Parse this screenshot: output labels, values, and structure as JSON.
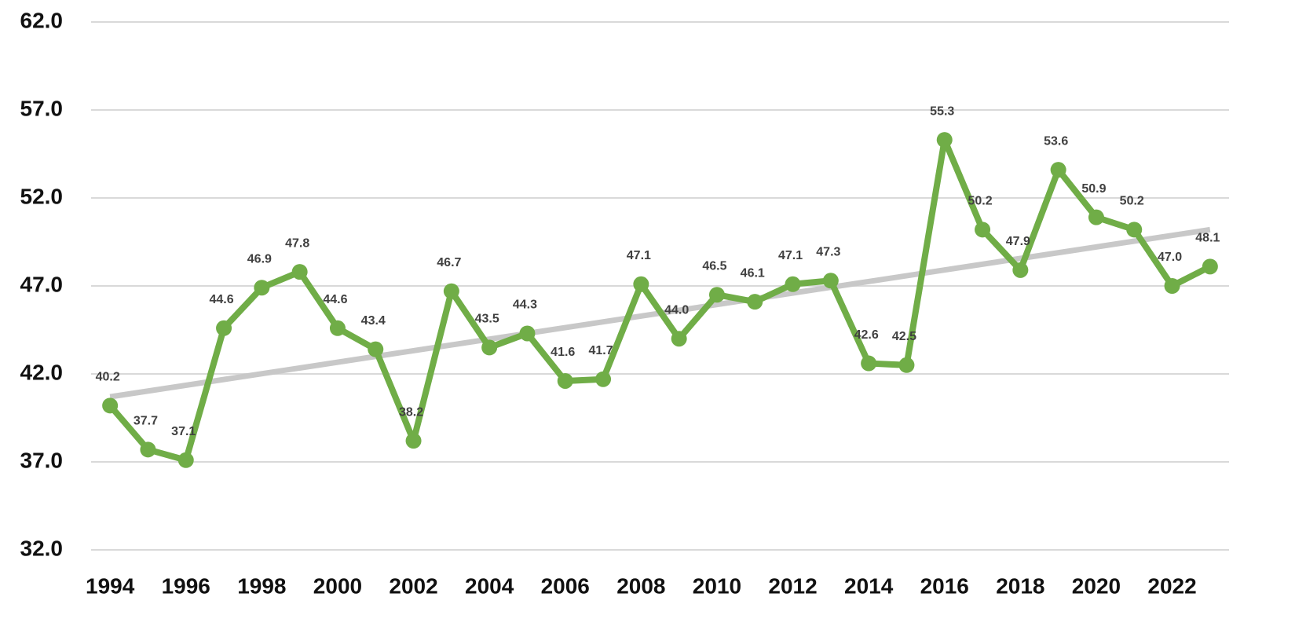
{
  "chart_data": {
    "type": "line",
    "x": [
      1994,
      1995,
      1996,
      1997,
      1998,
      1999,
      2000,
      2001,
      2002,
      2003,
      2004,
      2005,
      2006,
      2007,
      2008,
      2009,
      2010,
      2011,
      2012,
      2013,
      2014,
      2015,
      2016,
      2017,
      2018,
      2019,
      2020,
      2021,
      2022,
      2023
    ],
    "series": [
      {
        "color": "#70ad47",
        "values": [
          40.2,
          37.7,
          37.1,
          44.6,
          46.9,
          47.8,
          44.6,
          43.4,
          38.2,
          46.7,
          43.5,
          44.3,
          41.6,
          41.7,
          47.1,
          44.0,
          46.5,
          46.1,
          47.1,
          47.3,
          42.6,
          42.5,
          55.3,
          50.2,
          47.9,
          53.6,
          50.9,
          50.2,
          47.0,
          48.1
        ],
        "value_labels": [
          "40.2",
          "37.7",
          "37.1",
          "44.6",
          "46.9",
          "47.8",
          "44.6",
          "43.4",
          "38.2",
          "46.7",
          "43.5",
          "44.3",
          "41.6",
          "41.7",
          "47.1",
          "44.0",
          "46.5",
          "46.1",
          "47.1",
          "47.3",
          "42.6",
          "42.5",
          "55.3",
          "50.2",
          "47.9",
          "53.6",
          "50.9",
          "50.2",
          "47.0",
          "48.1"
        ]
      }
    ],
    "trendline": {
      "x": [
        1994,
        2023
      ],
      "values": [
        40.7,
        50.2
      ],
      "color": "#c8c8c8"
    },
    "xlim": [
      1993.5,
      2023.5
    ],
    "xticks": [
      1994,
      1996,
      1998,
      2000,
      2002,
      2004,
      2006,
      2008,
      2010,
      2012,
      2014,
      2016,
      2018,
      2020,
      2022
    ],
    "ylim": [
      32,
      62
    ],
    "yticks": [
      {
        "value": 32,
        "label": "32.0"
      },
      {
        "value": 37,
        "label": "37.0"
      },
      {
        "value": 42,
        "label": "42.0"
      },
      {
        "value": 47,
        "label": "47.0"
      },
      {
        "value": 52,
        "label": "52.0"
      },
      {
        "value": 57,
        "label": "57.0"
      },
      {
        "value": 62,
        "label": "62.0"
      }
    ],
    "grid": true
  }
}
